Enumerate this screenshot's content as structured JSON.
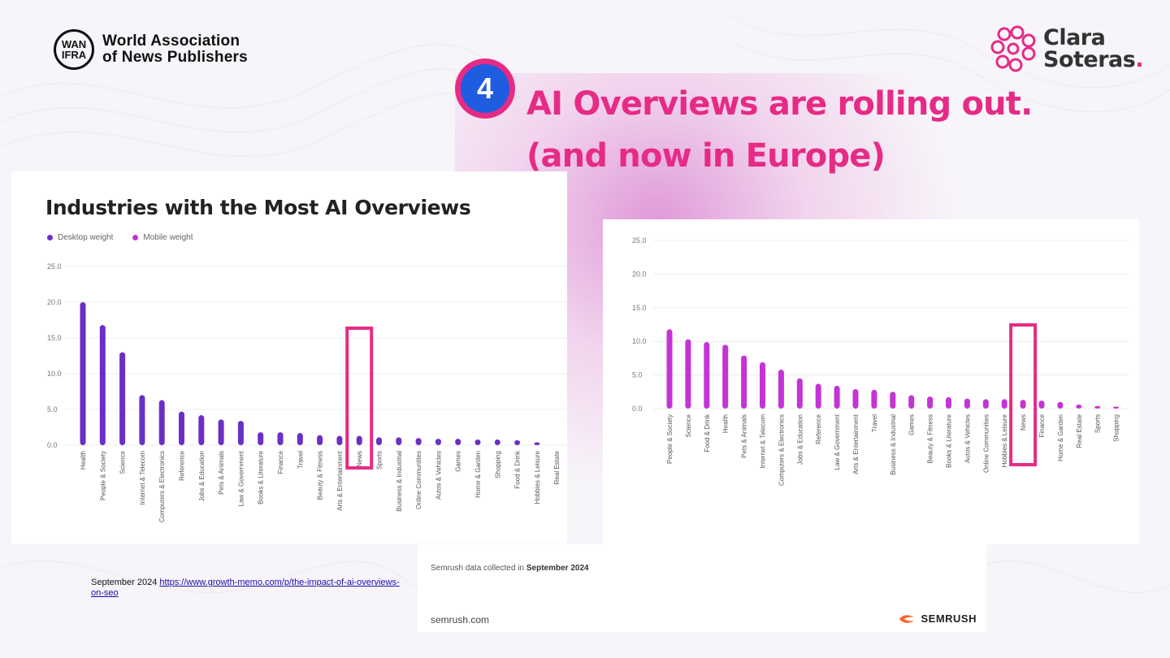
{
  "header": {
    "wan_logo_text_1": "WAN",
    "wan_logo_text_2": "IFRA",
    "org_line1": "World Association",
    "org_line2": "of News Publishers",
    "brand_line1": "Clara",
    "brand_line2": "Soteras",
    "brand_dot": ".",
    "slide_number": "4",
    "headline_line1": "AI Overviews are rolling out.",
    "headline_line2": "(and now in Europe)"
  },
  "colors": {
    "accent_pink": "#e62b86",
    "badge_blue": "#1e5ce0",
    "desktop_purple": "#6a2fc6",
    "mobile_magenta": "#c433d6"
  },
  "chart_data": [
    {
      "type": "bar",
      "title": "Industries with the Most AI Overviews",
      "legend": [
        "Desktop weight",
        "Mobile weight"
      ],
      "ylim": [
        0,
        25
      ],
      "yticks": [
        "0.0",
        "5.0",
        "10.0",
        "15.0",
        "20.0",
        "25.0"
      ],
      "categories": [
        "Health",
        "People & Society",
        "Science",
        "Internet & Telecom",
        "Computers & Electronics",
        "Reference",
        "Jobs & Education",
        "Pets & Animals",
        "Law & Government",
        "Books & Literature",
        "Finance",
        "Travel",
        "Beauty & Fitness",
        "Arts & Entertainment",
        "News",
        "Sports",
        "Business & Industrial",
        "Online Communities",
        "Autos & Vehicles",
        "Games",
        "Home & Garden",
        "Shopping",
        "Food & Drink",
        "Hobbies & Leisure",
        "Real Estate"
      ],
      "series": [
        {
          "name": "Desktop weight",
          "values": [
            20.0,
            16.8,
            13.0,
            7.0,
            6.3,
            4.7,
            4.2,
            3.6,
            3.4,
            1.8,
            1.8,
            1.7,
            1.4,
            1.3,
            1.3,
            1.1,
            1.1,
            1.0,
            0.9,
            0.9,
            0.8,
            0.8,
            0.7,
            0.4,
            0.0
          ]
        }
      ],
      "highlight": "News"
    },
    {
      "type": "bar",
      "title": "",
      "ylim": [
        0,
        25
      ],
      "yticks": [
        "0.0",
        "5.0",
        "10.0",
        "15.0",
        "20.0",
        "25.0"
      ],
      "categories": [
        "People & Society",
        "Science",
        "Food & Drink",
        "Health",
        "Pets & Animals",
        "Internet & Telecom",
        "Computers & Electronics",
        "Jobs & Education",
        "Reference",
        "Law & Government",
        "Arts & Entertainment",
        "Travel",
        "Business & Industrial",
        "Games",
        "Beauty & Fitness",
        "Books & Literature",
        "Autos & Vehicles",
        "Online Communities",
        "Hobbies & Leisure",
        "News",
        "Finance",
        "Home & Garden",
        "Real Estate",
        "Sports",
        "Shopping"
      ],
      "series": [
        {
          "name": "Mobile weight",
          "values": [
            11.8,
            10.3,
            9.9,
            9.5,
            7.9,
            6.9,
            5.8,
            4.5,
            3.7,
            3.4,
            2.9,
            2.8,
            2.5,
            2.0,
            1.8,
            1.7,
            1.5,
            1.4,
            1.4,
            1.3,
            1.2,
            1.0,
            0.6,
            0.4,
            0.3
          ]
        }
      ],
      "highlight": "News"
    }
  ],
  "footer": {
    "source_date": "September 2024",
    "source_link": "https://www.growth-memo.com/p/the-impact-of-ai-overviews-on-seo",
    "semrush_note_prefix": "Semrush data collected in",
    "semrush_note_date": "September 2024",
    "semrush_site": "semrush.com",
    "semrush_brand": "SEMRUSH"
  }
}
